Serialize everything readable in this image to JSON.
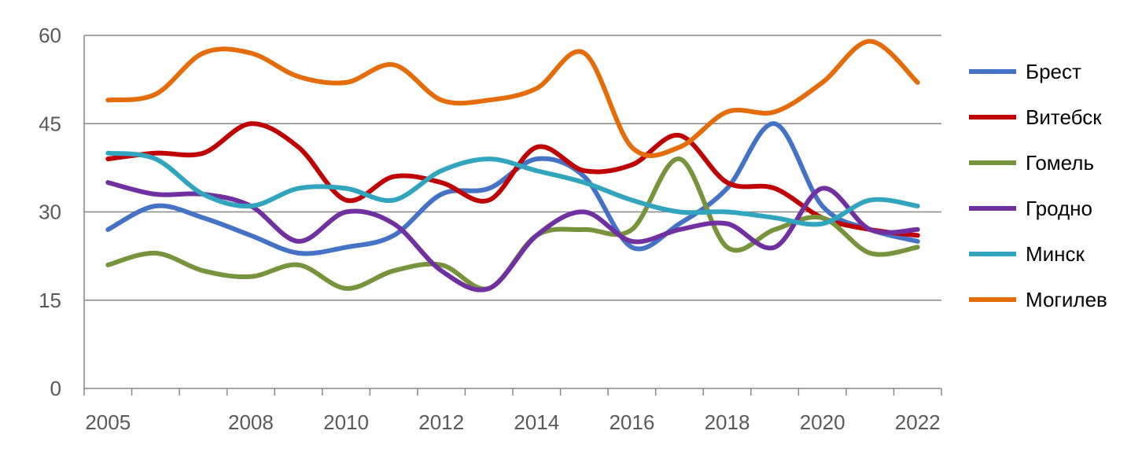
{
  "chart_data": {
    "type": "line",
    "smooth": true,
    "x": [
      2005,
      2006,
      2007,
      2008,
      2009,
      2010,
      2011,
      2012,
      2013,
      2014,
      2015,
      2016,
      2017,
      2018,
      2019,
      2020,
      2021,
      2022
    ],
    "x_tick_labels": [
      "2005",
      "",
      "",
      "2008",
      "",
      "2010",
      "",
      "2012",
      "",
      "2014",
      "",
      "2016",
      "",
      "2018",
      "",
      "2020",
      "",
      "2022"
    ],
    "ylim": [
      0,
      60
    ],
    "y_ticks": [
      0,
      15,
      30,
      45,
      60
    ],
    "grid": "horizontal",
    "legend_position": "right",
    "series": [
      {
        "name": "Брест",
        "color": "#4472C4",
        "values": [
          27,
          31,
          29,
          26,
          23,
          24,
          26,
          33,
          34,
          39,
          36,
          24,
          28,
          34,
          45,
          31,
          27,
          25
        ]
      },
      {
        "name": "Витебск",
        "color": "#C00000",
        "values": [
          39,
          40,
          40,
          45,
          41,
          32,
          36,
          35,
          32,
          41,
          37,
          38,
          43,
          35,
          34,
          29,
          27,
          26
        ]
      },
      {
        "name": "Гомель",
        "color": "#77933C",
        "values": [
          21,
          23,
          20,
          19,
          21,
          17,
          20,
          21,
          17,
          26,
          27,
          27,
          39,
          24,
          27,
          29,
          23,
          24
        ]
      },
      {
        "name": "Гродно",
        "color": "#7030A0",
        "values": [
          35,
          33,
          33,
          31,
          25,
          30,
          28,
          20,
          17,
          26,
          30,
          25,
          27,
          28,
          24,
          34,
          27,
          27
        ]
      },
      {
        "name": "Минск",
        "color": "#31A5BD",
        "values": [
          40,
          39,
          33,
          31,
          34,
          34,
          32,
          37,
          39,
          37,
          35,
          32,
          30,
          30,
          29,
          28,
          32,
          31
        ]
      },
      {
        "name": "Могилев",
        "color": "#E46C0A",
        "values": [
          49,
          50,
          57,
          57,
          53,
          52,
          55,
          49,
          49,
          51,
          57,
          41,
          41,
          47,
          47,
          52,
          59,
          52
        ]
      }
    ]
  }
}
